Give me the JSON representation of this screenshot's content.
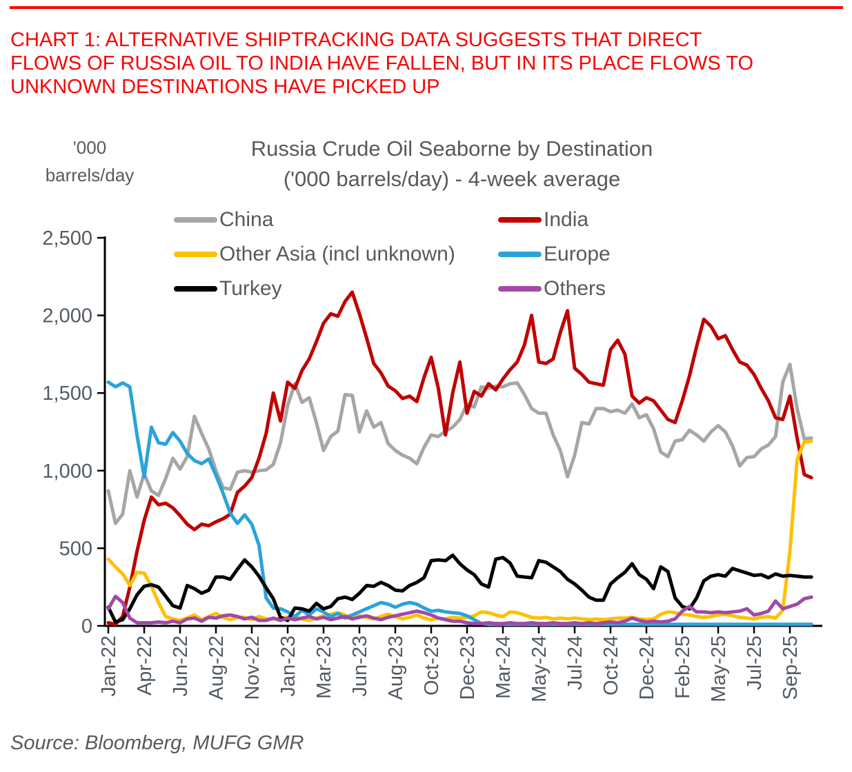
{
  "header": {
    "line1": "CHART 1: ALTERNATIVE SHIPTRACKING DATA SUGGESTS THAT DIRECT",
    "line2": "FLOWS OF RUSSIA OIL TO INDIA HAVE FALLEN, BUT IN ITS PLACE FLOWS TO",
    "line3": "UNKNOWN DESTINATIONS HAVE PICKED UP",
    "accent_color": "#fa0000"
  },
  "footer": {
    "source": "Source: Bloomberg, MUFG GMR"
  },
  "chart_data": {
    "type": "line",
    "title": "Russia Crude Oil Seaborne by Destination",
    "subtitle": "('000 barrels/day) - 4-week average",
    "unit_label_line1": "'000",
    "unit_label_line2": "barrels/day",
    "grid": "off",
    "legend_position": "top",
    "ylim": [
      0,
      2500
    ],
    "y_tick_values": [
      0,
      500,
      1000,
      1500,
      2000,
      2500
    ],
    "y_tick_labels": [
      "0",
      "500",
      "1,000",
      "1,500",
      "2,000",
      "2,500"
    ],
    "x_tick_labels": [
      "Jan-22",
      "Apr-22",
      "Jun-22",
      "Aug-22",
      "Nov-22",
      "Jan-23",
      "Mar-23",
      "Jun-23",
      "Aug-23",
      "Oct-23",
      "Dec-23",
      "Mar-24",
      "May-24",
      "Jul-24",
      "Oct-24",
      "Dec-24",
      "Feb-25",
      "May-25",
      "Jul-25",
      "Sep-25"
    ],
    "x_tick_week_interval": 10,
    "week_step": 2,
    "total_weeks": 196,
    "axis_color": "#000000",
    "text_color": "#595959",
    "series": [
      {
        "name": "China",
        "color": "#a6a6a6",
        "values": [
          870,
          660,
          720,
          1000,
          830,
          980,
          870,
          840,
          950,
          1080,
          1010,
          1090,
          1350,
          1240,
          1140,
          1000,
          890,
          880,
          990,
          1000,
          990,
          1000,
          1005,
          1040,
          1180,
          1420,
          1560,
          1440,
          1470,
          1310,
          1130,
          1220,
          1255,
          1490,
          1485,
          1250,
          1385,
          1280,
          1310,
          1175,
          1130,
          1100,
          1080,
          1045,
          1150,
          1230,
          1220,
          1255,
          1280,
          1330,
          1430,
          1410,
          1540,
          1530,
          1545,
          1540,
          1560,
          1565,
          1490,
          1400,
          1370,
          1370,
          1230,
          1130,
          960,
          1100,
          1310,
          1300,
          1400,
          1400,
          1380,
          1390,
          1370,
          1430,
          1340,
          1360,
          1270,
          1120,
          1090,
          1190,
          1200,
          1260,
          1230,
          1190,
          1250,
          1290,
          1250,
          1160,
          1030,
          1085,
          1090,
          1140,
          1165,
          1220,
          1570,
          1685,
          1400,
          1205,
          1210
        ]
      },
      {
        "name": "India",
        "color": "#c00000",
        "values": [
          20,
          10,
          60,
          250,
          480,
          680,
          830,
          780,
          790,
          760,
          710,
          655,
          620,
          655,
          645,
          670,
          690,
          720,
          860,
          900,
          955,
          1080,
          1240,
          1500,
          1320,
          1570,
          1530,
          1645,
          1720,
          1830,
          1950,
          2010,
          1995,
          2090,
          2150,
          2010,
          1855,
          1690,
          1630,
          1545,
          1515,
          1465,
          1480,
          1445,
          1600,
          1730,
          1530,
          1230,
          1500,
          1700,
          1370,
          1510,
          1480,
          1560,
          1520,
          1590,
          1650,
          1700,
          1810,
          2000,
          1700,
          1690,
          1720,
          1890,
          2030,
          1660,
          1620,
          1570,
          1560,
          1550,
          1780,
          1840,
          1750,
          1480,
          1435,
          1470,
          1450,
          1390,
          1330,
          1310,
          1450,
          1610,
          1800,
          1975,
          1930,
          1850,
          1870,
          1780,
          1700,
          1680,
          1620,
          1530,
          1450,
          1340,
          1330,
          1480,
          1210,
          975,
          955
        ]
      },
      {
        "name": "Other Asia (incl unknown)",
        "color": "#ffc000",
        "values": [
          430,
          380,
          335,
          260,
          345,
          340,
          255,
          150,
          60,
          45,
          35,
          50,
          70,
          40,
          60,
          80,
          55,
          40,
          55,
          55,
          40,
          60,
          45,
          45,
          50,
          55,
          60,
          45,
          35,
          50,
          65,
          75,
          85,
          70,
          55,
          65,
          55,
          45,
          60,
          75,
          60,
          45,
          55,
          70,
          50,
          40,
          50,
          45,
          55,
          50,
          55,
          65,
          90,
          85,
          70,
          60,
          90,
          85,
          70,
          55,
          50,
          55,
          45,
          50,
          45,
          50,
          45,
          40,
          45,
          40,
          45,
          50,
          50,
          55,
          45,
          40,
          45,
          75,
          90,
          85,
          75,
          70,
          60,
          55,
          60,
          70,
          75,
          65,
          55,
          50,
          45,
          55,
          60,
          50,
          100,
          480,
          1070,
          1185,
          1190
        ]
      },
      {
        "name": "Europe",
        "color": "#29a3dc",
        "values": [
          1570,
          1540,
          1565,
          1540,
          1230,
          960,
          1280,
          1180,
          1170,
          1245,
          1190,
          1110,
          1065,
          1045,
          1075,
          970,
          855,
          725,
          660,
          715,
          655,
          520,
          180,
          115,
          110,
          90,
          60,
          100,
          70,
          110,
          90,
          60,
          80,
          50,
          70,
          90,
          110,
          130,
          150,
          140,
          120,
          140,
          150,
          140,
          115,
          95,
          100,
          90,
          85,
          80,
          65,
          40,
          15,
          10,
          10,
          10,
          10,
          10,
          10,
          10,
          10,
          10,
          10,
          10,
          10,
          10,
          10,
          10,
          10,
          10,
          10,
          10,
          10,
          10,
          10,
          10,
          10,
          10,
          10,
          10,
          10,
          10,
          10,
          10,
          10,
          10,
          10,
          10,
          10,
          10,
          10,
          10,
          10,
          10,
          10,
          10,
          10,
          10,
          10
        ]
      },
      {
        "name": "Turkey",
        "color": "#000000",
        "values": [
          120,
          25,
          40,
          110,
          200,
          255,
          265,
          250,
          190,
          130,
          115,
          260,
          240,
          210,
          230,
          315,
          315,
          300,
          365,
          425,
          380,
          320,
          245,
          175,
          55,
          35,
          115,
          110,
          95,
          145,
          110,
          125,
          175,
          185,
          170,
          210,
          260,
          255,
          280,
          260,
          230,
          225,
          260,
          280,
          310,
          420,
          425,
          420,
          455,
          400,
          360,
          330,
          270,
          250,
          430,
          440,
          405,
          320,
          315,
          310,
          420,
          410,
          380,
          350,
          300,
          270,
          230,
          185,
          165,
          165,
          270,
          310,
          345,
          400,
          330,
          300,
          240,
          380,
          350,
          180,
          125,
          110,
          180,
          290,
          320,
          330,
          320,
          370,
          355,
          340,
          325,
          330,
          310,
          335,
          320,
          325,
          320,
          315,
          315
        ]
      },
      {
        "name": "Others",
        "color": "#a04aa6",
        "values": [
          110,
          190,
          150,
          50,
          20,
          20,
          20,
          25,
          20,
          30,
          20,
          45,
          50,
          30,
          55,
          50,
          65,
          70,
          60,
          45,
          55,
          35,
          35,
          50,
          35,
          50,
          40,
          50,
          60,
          45,
          55,
          40,
          50,
          60,
          45,
          55,
          65,
          50,
          40,
          55,
          65,
          75,
          85,
          95,
          85,
          70,
          50,
          40,
          30,
          30,
          20,
          15,
          15,
          20,
          15,
          15,
          20,
          15,
          15,
          20,
          15,
          15,
          20,
          15,
          15,
          20,
          15,
          20,
          15,
          20,
          25,
          20,
          30,
          50,
          35,
          25,
          30,
          25,
          30,
          45,
          95,
          125,
          90,
          90,
          85,
          90,
          85,
          90,
          95,
          110,
          70,
          80,
          95,
          160,
          110,
          125,
          140,
          175,
          185
        ]
      }
    ]
  }
}
